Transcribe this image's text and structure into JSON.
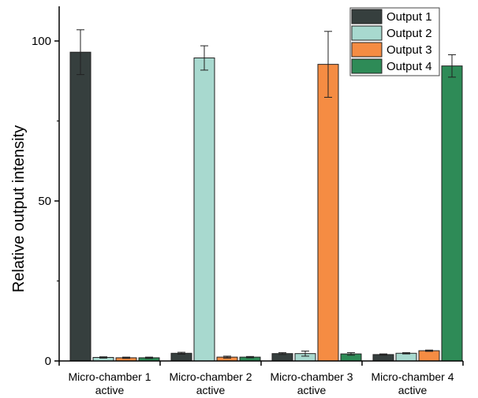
{
  "chart_data": {
    "type": "bar",
    "title": "",
    "xlabel": "",
    "ylabel": "Relative output intensity",
    "ylim": [
      0,
      110
    ],
    "yticks": [
      0,
      50,
      100
    ],
    "grid": false,
    "legend_position": "top-right",
    "categories": [
      [
        "Micro-chamber 1",
        "active"
      ],
      [
        "Micro-chamber 2",
        "active"
      ],
      [
        "Micro-chamber 3",
        "active"
      ],
      [
        "Micro-chamber 4",
        "active"
      ]
    ],
    "series": [
      {
        "name": "Output 1",
        "color": "#363f3e",
        "values": [
          96.5,
          2.4,
          2.3,
          2.0
        ],
        "errors": [
          7.0,
          0.3,
          0.3,
          0.2
        ]
      },
      {
        "name": "Output 2",
        "color": "#a8d9cf",
        "values": [
          1.1,
          94.7,
          2.3,
          2.4
        ],
        "errors": [
          0.2,
          3.8,
          0.8,
          0.2
        ]
      },
      {
        "name": "Output 3",
        "color": "#f58c43",
        "values": [
          1.0,
          1.2,
          92.7,
          3.2
        ],
        "errors": [
          0.2,
          0.3,
          10.3,
          0.2
        ]
      },
      {
        "name": "Output 4",
        "color": "#2e8b57",
        "values": [
          1.0,
          1.2,
          2.2,
          92.2
        ],
        "errors": [
          0.2,
          0.2,
          0.4,
          3.5
        ]
      }
    ]
  }
}
